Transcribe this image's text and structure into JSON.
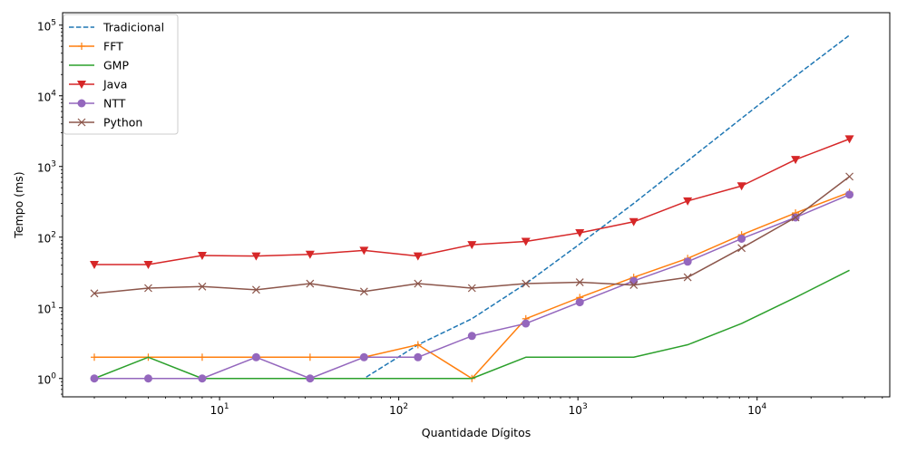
{
  "chart_data": {
    "type": "line",
    "title": "",
    "xlabel": "Quantidade Dígitos",
    "ylabel": "Tempo (ms)",
    "xscale": "log",
    "yscale": "log",
    "xlim": [
      1.33,
      55000
    ],
    "ylim": [
      0.55,
      150000
    ],
    "x_ticks": [
      {
        "value": 10,
        "base": "10",
        "exp": "1"
      },
      {
        "value": 100,
        "base": "10",
        "exp": "2"
      },
      {
        "value": 1000,
        "base": "10",
        "exp": "3"
      },
      {
        "value": 10000,
        "base": "10",
        "exp": "4"
      }
    ],
    "y_ticks": [
      {
        "value": 1,
        "base": "10",
        "exp": "0"
      },
      {
        "value": 10,
        "base": "10",
        "exp": "1"
      },
      {
        "value": 100,
        "base": "10",
        "exp": "2"
      },
      {
        "value": 1000,
        "base": "10",
        "exp": "3"
      },
      {
        "value": 10000,
        "base": "10",
        "exp": "4"
      },
      {
        "value": 100000,
        "base": "10",
        "exp": "5"
      }
    ],
    "grid": false,
    "legend_position": "top-left",
    "x": [
      2,
      4,
      8,
      16,
      32,
      64,
      128,
      256,
      512,
      1024,
      2048,
      4096,
      8192,
      16384,
      32768
    ],
    "series": [
      {
        "name": "Tradicional",
        "color": "#1f77b4",
        "dash": true,
        "marker": "none",
        "values": [
          1,
          1,
          1,
          1,
          1,
          1,
          3,
          7,
          22,
          80,
          300,
          1200,
          4800,
          19000,
          72000
        ]
      },
      {
        "name": "FFT",
        "color": "#ff7f0e",
        "dash": false,
        "marker": "plus",
        "values": [
          2,
          2,
          2,
          2,
          2,
          2,
          3,
          1,
          7,
          14,
          27,
          50,
          108,
          220,
          430
        ]
      },
      {
        "name": "GMP",
        "color": "#2ca02c",
        "dash": false,
        "marker": "none",
        "values": [
          1,
          2,
          1,
          1,
          1,
          1,
          1,
          1,
          2,
          2,
          2,
          3,
          6,
          14,
          34
        ]
      },
      {
        "name": "Java",
        "color": "#d62728",
        "dash": false,
        "marker": "triangle-down",
        "values": [
          41,
          41,
          55,
          54,
          57,
          65,
          54,
          78,
          87,
          115,
          165,
          325,
          530,
          1250,
          2450
        ]
      },
      {
        "name": "NTT",
        "color": "#9467bd",
        "dash": false,
        "marker": "circle",
        "values": [
          1,
          1,
          1,
          2,
          1,
          2,
          2,
          4,
          6,
          12,
          24,
          45,
          95,
          190,
          400
        ]
      },
      {
        "name": "Python",
        "color": "#8c564b",
        "dash": false,
        "marker": "x",
        "values": [
          16,
          19,
          20,
          18,
          22,
          17,
          22,
          19,
          22,
          23,
          21,
          27,
          70,
          190,
          720
        ]
      }
    ]
  }
}
